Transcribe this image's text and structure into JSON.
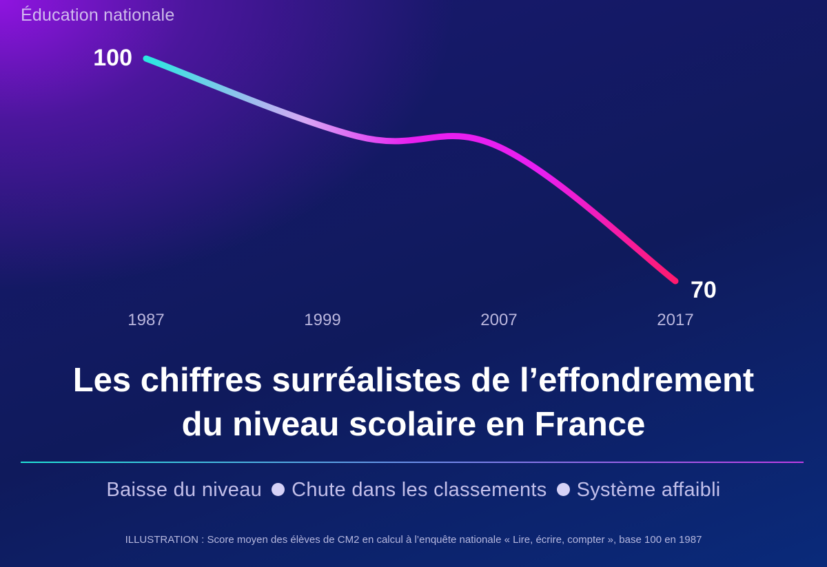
{
  "source_label": "Éducation nationale",
  "headline": {
    "line1": "Les chiffres surréalistes de l’effondrement",
    "line2": "du niveau scolaire en France"
  },
  "tags": [
    "Baisse du niveau",
    "Chute dans les classements",
    "Système affaibli"
  ],
  "footnote": "ILLUSTRATION : Score moyen des élèves de CM2 en calcul à l’enquête nationale « Lire, écrire, compter », base 100 en 1987",
  "colors": {
    "line_start": "#2ae8e0",
    "line_mid": "#d7a8f5",
    "line_magenta": "#e81ff0",
    "line_end": "#ff1a6e"
  },
  "chart_data": {
    "type": "line",
    "title": "",
    "xlabel": "",
    "ylabel": "",
    "x": [
      1987,
      1999,
      2007,
      2017
    ],
    "tick_labels": [
      "1987",
      "1999",
      "2007",
      "2017"
    ],
    "series": [
      {
        "values": [
          100,
          89.5,
          88.1,
          70
        ]
      }
    ],
    "end_labels": {
      "start": "100",
      "end": "70"
    },
    "ylim": [
      70,
      100
    ],
    "grid": false,
    "legend": "none"
  }
}
